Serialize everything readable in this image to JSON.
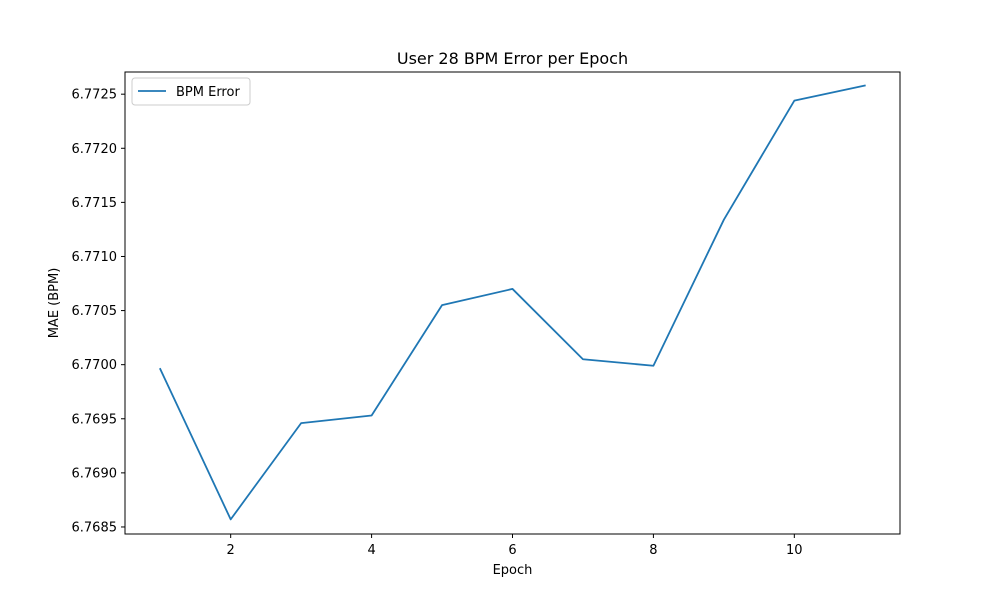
{
  "chart_data": {
    "type": "line",
    "title": "User 28 BPM Error per Epoch",
    "xlabel": "Epoch",
    "ylabel": "MAE (BPM)",
    "x": [
      1,
      2,
      3,
      4,
      5,
      6,
      7,
      8,
      9,
      10,
      11
    ],
    "series": [
      {
        "name": "BPM Error",
        "color": "#1f77b4",
        "values": [
          6.76996,
          6.76857,
          6.76946,
          6.76953,
          6.77055,
          6.7707,
          6.77005,
          6.76999,
          6.77134,
          6.77244,
          6.77258
        ]
      }
    ],
    "xlim": [
      0.5,
      11.5
    ],
    "ylim": [
      6.768435,
      6.772705
    ],
    "xticks": [
      2,
      4,
      6,
      8,
      10
    ],
    "xtick_labels": [
      "2",
      "4",
      "6",
      "8",
      "10"
    ],
    "yticks": [
      6.7685,
      6.769,
      6.7695,
      6.77,
      6.7705,
      6.771,
      6.7715,
      6.772,
      6.7725
    ],
    "ytick_labels": [
      "6.7685",
      "6.7690",
      "6.7695",
      "6.7700",
      "6.7705",
      "6.7710",
      "6.7715",
      "6.7720",
      "6.7725"
    ],
    "grid": false,
    "legend_position": "top-left"
  }
}
